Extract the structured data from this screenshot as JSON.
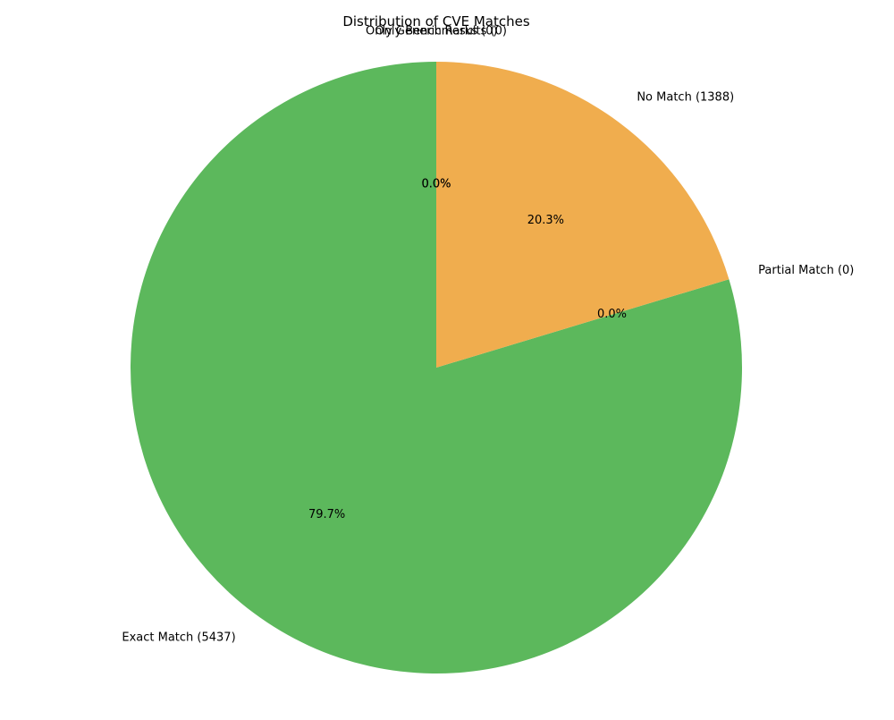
{
  "chart_data": {
    "type": "pie",
    "title": "Distribution of CVE Matches",
    "slices": [
      {
        "label": "Exact Match (5437)",
        "value": 5437,
        "percent_label": "79.7%",
        "color": "#5cb85c"
      },
      {
        "label": "Partial Match (0)",
        "value": 0,
        "percent_label": "0.0%",
        "color": "#5bc0de"
      },
      {
        "label": "No Match (1388)",
        "value": 1388,
        "percent_label": "20.3%",
        "color": "#f0ad4e"
      },
      {
        "label": "Only Benchmarks (0)",
        "value": 0,
        "percent_label": "0.0%",
        "color": "#d9534f"
      },
      {
        "label": "Only Generic Results (0)",
        "value": 0,
        "percent_label": "0.0%",
        "color": "#777777"
      }
    ],
    "start_angle_deg": 90,
    "direction": "counterclockwise",
    "legend": "none"
  }
}
